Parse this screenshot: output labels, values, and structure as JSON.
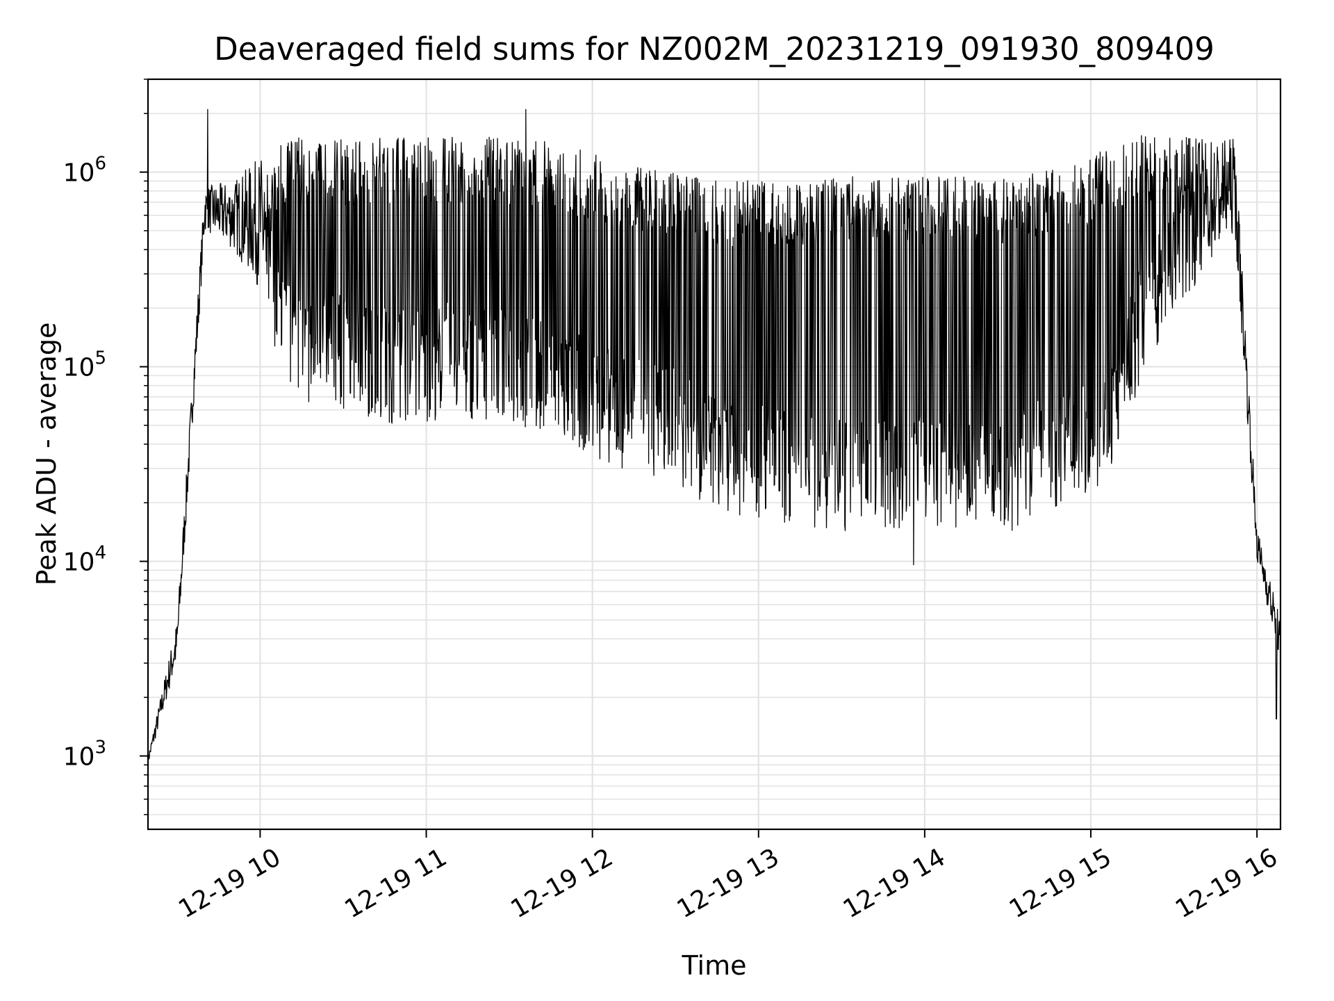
{
  "chart_data": {
    "type": "line",
    "title": "Deaveraged field sums for NZ002M_20231219_091930_809409",
    "xlabel": "Time",
    "ylabel": "Peak ADU - average",
    "yscale": "log",
    "ylim": [
      420,
      3000000
    ],
    "xlim": [
      "2023-12-19 09:19:30",
      "2023-12-19 16:08:30"
    ],
    "x_ticks": [
      {
        "value": "2023-12-19 10:00",
        "label": "12-19 10"
      },
      {
        "value": "2023-12-19 11:00",
        "label": "12-19 11"
      },
      {
        "value": "2023-12-19 12:00",
        "label": "12-19 12"
      },
      {
        "value": "2023-12-19 13:00",
        "label": "12-19 13"
      },
      {
        "value": "2023-12-19 14:00",
        "label": "12-19 14"
      },
      {
        "value": "2023-12-19 15:00",
        "label": "12-19 15"
      },
      {
        "value": "2023-12-19 16:00",
        "label": "12-19 16"
      }
    ],
    "y_ticks": [
      {
        "value": 1000,
        "base": "10",
        "exp": "3"
      },
      {
        "value": 10000,
        "base": "10",
        "exp": "4"
      },
      {
        "value": 100000,
        "base": "10",
        "exp": "5"
      },
      {
        "value": 1000000,
        "base": "10",
        "exp": "6"
      }
    ],
    "grid": true,
    "series": [
      {
        "color": "#000000",
        "note": "rapid oscillation between a low envelope and a high envelope",
        "low_envelope": {
          "x": [
            "2023-12-19 09:19:30",
            "2023-12-19 09:30",
            "2023-12-19 09:40",
            "2023-12-19 09:50",
            "2023-12-19 10:00",
            "2023-12-19 10:10",
            "2023-12-19 10:20",
            "2023-12-19 10:30",
            "2023-12-19 10:50",
            "2023-12-19 11:10",
            "2023-12-19 11:30",
            "2023-12-19 11:50",
            "2023-12-19 12:10",
            "2023-12-19 12:30",
            "2023-12-19 12:40",
            "2023-12-19 13:00",
            "2023-12-19 13:30",
            "2023-12-19 14:00",
            "2023-12-19 14:30",
            "2023-12-19 14:50",
            "2023-12-19 15:05",
            "2023-12-19 15:20",
            "2023-12-19 15:40",
            "2023-12-19 15:52",
            "2023-12-19 16:00",
            "2023-12-19 16:08:30"
          ],
          "y": [
            900,
            3000,
            500000,
            400000,
            250000,
            70000,
            60000,
            60000,
            50000,
            55000,
            50000,
            40000,
            30000,
            25000,
            20000,
            16000,
            14000,
            15000,
            14000,
            20000,
            25000,
            100000,
            300000,
            500000,
            10000,
            3000
          ]
        },
        "high_envelope": {
          "x": [
            "2023-12-19 09:19:30",
            "2023-12-19 09:30",
            "2023-12-19 09:40",
            "2023-12-19 09:50",
            "2023-12-19 10:00",
            "2023-12-19 10:10",
            "2023-12-19 10:20",
            "2023-12-19 10:30",
            "2023-12-19 10:50",
            "2023-12-19 11:10",
            "2023-12-19 11:30",
            "2023-12-19 11:50",
            "2023-12-19 12:10",
            "2023-12-19 12:30",
            "2023-12-19 12:40",
            "2023-12-19 13:00",
            "2023-12-19 13:30",
            "2023-12-19 14:00",
            "2023-12-19 14:30",
            "2023-12-19 14:50",
            "2023-12-19 15:05",
            "2023-12-19 15:20",
            "2023-12-19 15:40",
            "2023-12-19 15:52",
            "2023-12-19 16:00",
            "2023-12-19 16:08:30"
          ],
          "y": [
            1000,
            5000,
            850000,
            900000,
            1200000,
            1500000,
            1500000,
            1500000,
            1500000,
            1550000,
            1500000,
            1400000,
            1100000,
            1000000,
            950000,
            900000,
            950000,
            950000,
            950000,
            1050000,
            1300000,
            1600000,
            1500000,
            1500000,
            15000,
            5000
          ]
        },
        "spikes": [
          {
            "x": "2023-12-19 09:41",
            "y": 2100000
          },
          {
            "x": "2023-12-19 11:36",
            "y": 2100000
          },
          {
            "x": "2023-12-19 13:56",
            "y": 9600
          },
          {
            "x": "2023-12-19 16:07",
            "y": 1550
          }
        ]
      }
    ]
  }
}
